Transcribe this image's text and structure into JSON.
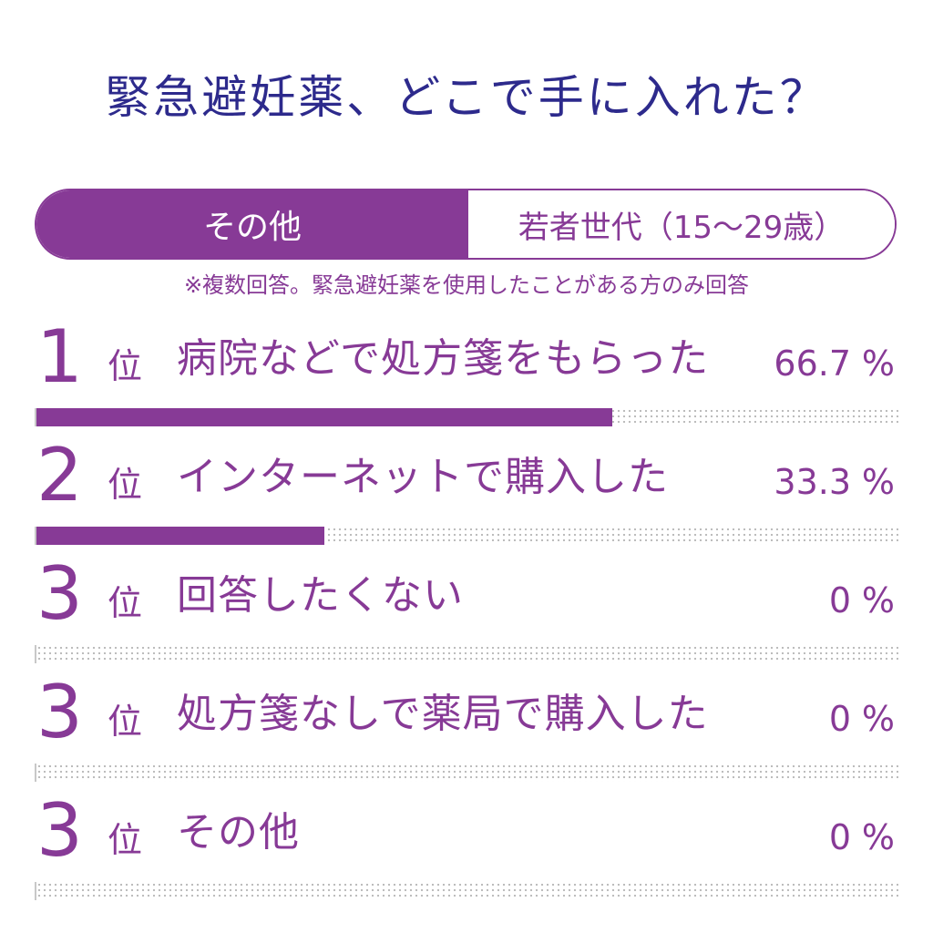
{
  "title": "緊急避妊薬、どこで手に入れた？",
  "tabs": [
    {
      "label": "その他",
      "active": true
    },
    {
      "label": "若者世代（15〜29歳）",
      "active": false
    }
  ],
  "note": "※複数回答。緊急避妊薬を使用したことがある方のみ回答",
  "colors": {
    "accent": "#873a96",
    "title": "#2d2a8c",
    "track_dots": "#b9b9b9"
  },
  "rank_suffix": "位",
  "unit": "%",
  "chart_data": {
    "type": "bar",
    "orientation": "horizontal",
    "categories": [
      "病院などで処方箋をもらった",
      "インターネットで購入した",
      "回答したくない",
      "処方箋なしで薬局で購入した",
      "その他"
    ],
    "ranks": [
      "1",
      "2",
      "3",
      "3",
      "3"
    ],
    "values": [
      66.7,
      33.3,
      0,
      0,
      0
    ],
    "value_labels": [
      "66.7",
      "33.3",
      "0",
      "0",
      "0"
    ],
    "xlim": [
      0,
      100
    ]
  }
}
